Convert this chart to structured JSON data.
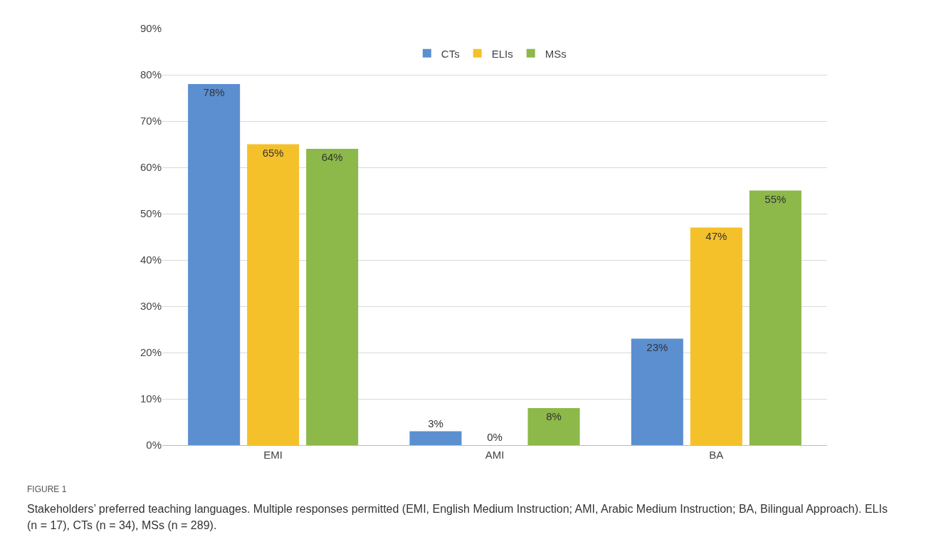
{
  "chart_data": {
    "type": "bar",
    "categories": [
      "EMI",
      "AMI",
      "BA"
    ],
    "series": [
      {
        "name": "CTs",
        "color": "#5b8fd0",
        "values": [
          78,
          3,
          23
        ],
        "value_labels": [
          "78%",
          "3%",
          "23%"
        ]
      },
      {
        "name": "ELIs",
        "color": "#f5c12a",
        "values": [
          65,
          0,
          47
        ],
        "value_labels": [
          "65%",
          "0%",
          "47%"
        ]
      },
      {
        "name": "MSs",
        "color": "#8db84a",
        "values": [
          64,
          8,
          55
        ],
        "value_labels": [
          "64%",
          "8%",
          "55%"
        ]
      }
    ],
    "ylim": [
      0,
      90
    ],
    "yticks": [
      {
        "value": 0,
        "label": "0%"
      },
      {
        "value": 10,
        "label": "10%"
      },
      {
        "value": 20,
        "label": "20%"
      },
      {
        "value": 30,
        "label": "30%"
      },
      {
        "value": 40,
        "label": "40%"
      },
      {
        "value": 50,
        "label": "50%"
      },
      {
        "value": 60,
        "label": "60%"
      },
      {
        "value": 70,
        "label": "70%"
      },
      {
        "value": 80,
        "label": "80%"
      },
      {
        "value": 90,
        "label": "90%"
      }
    ],
    "grid": "y",
    "legend": "top",
    "annotations": [
      "FIGURE 1",
      "Stakeholders’ preferred teaching languages. Multiple responses permitted (EMI, English Medium Instruction; AMI, Arabic Medium Instruction; BA, Bilingual Approach). ELIs (n = 17), CTs (n = 34), MSs (n = 289)."
    ]
  }
}
